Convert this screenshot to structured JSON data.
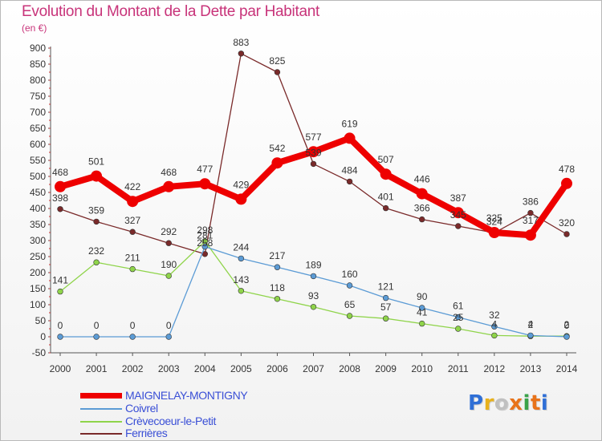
{
  "header": {
    "title": "Evolution du Montant de la Dette par Habitant",
    "unit": "(en €)"
  },
  "logo": {
    "text": "Proxiti",
    "colors": [
      "#2f6fd6",
      "#e8b11c",
      "#c0c0c0",
      "#e8731a",
      "#3aa34a",
      "#e8731a",
      "#2f6fd6"
    ]
  },
  "chart_data": {
    "type": "line",
    "title": "Evolution du Montant de la Dette par Habitant",
    "ylabel": "(en €)",
    "xlabel": "",
    "x": [
      2000,
      2001,
      2002,
      2003,
      2004,
      2005,
      2006,
      2007,
      2008,
      2009,
      2010,
      2011,
      2012,
      2013,
      2014
    ],
    "ylim": [
      -50,
      900
    ],
    "ytick_step": 50,
    "grid": false,
    "legend_position": "bottom-left",
    "series": [
      {
        "name": "MAIGNELAY-MONTIGNY",
        "color": "#ee0000",
        "values": [
          468,
          501,
          422,
          468,
          477,
          429,
          542,
          577,
          619,
          507,
          446,
          387,
          325,
          317,
          478
        ],
        "labels": [
          "468",
          "501",
          "422",
          "468",
          "477",
          "429",
          "542",
          "577",
          "619",
          "507",
          "446",
          "387",
          "325",
          "317",
          "478"
        ]
      },
      {
        "name": "Coivrel",
        "color": "#5b9bd5",
        "values": [
          0,
          0,
          0,
          0,
          281,
          244,
          217,
          189,
          160,
          121,
          90,
          61,
          32,
          4,
          0
        ],
        "labels": [
          "0",
          "0",
          "0",
          "0",
          "281",
          "244",
          "217",
          "189",
          "160",
          "121",
          "90",
          "61",
          "32",
          "4",
          "0"
        ]
      },
      {
        "name": "Crèvecoeur-le-Petit",
        "color": "#8fd44a",
        "values": [
          141,
          232,
          211,
          190,
          298,
          143,
          118,
          93,
          65,
          57,
          41,
          25,
          4,
          2,
          2
        ],
        "labels": [
          "141",
          "232",
          "211",
          "190",
          "298",
          "143",
          "118",
          "93",
          "65",
          "57",
          "41",
          "25",
          "4",
          "2",
          "2"
        ]
      },
      {
        "name": "Ferrières",
        "color": "#7a2a2a",
        "values": [
          398,
          359,
          327,
          292,
          258,
          883,
          825,
          539,
          484,
          401,
          366,
          345,
          324,
          386,
          320
        ],
        "labels": [
          "398",
          "359",
          "327",
          "292",
          "258",
          "883",
          "825",
          "539",
          "484",
          "401",
          "366",
          "345",
          "324",
          "386",
          "320"
        ]
      }
    ]
  }
}
